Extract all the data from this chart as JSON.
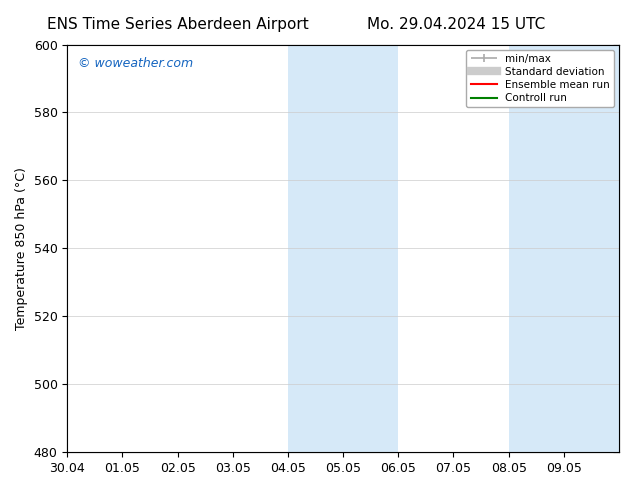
{
  "title_left": "ENS Time Series Aberdeen Airport",
  "title_right": "Mo. 29.04.2024 15 UTC",
  "ylabel": "Temperature 850 hPa (°C)",
  "xlabel": "",
  "ylim": [
    480,
    600
  ],
  "yticks": [
    480,
    500,
    520,
    540,
    560,
    580,
    600
  ],
  "xlim_start": "2024-04-30",
  "xlim_end": "2024-05-10",
  "xtick_labels": [
    "30.04",
    "01.05",
    "02.05",
    "03.05",
    "04.05",
    "05.05",
    "06.05",
    "07.05",
    "08.05",
    "09.05"
  ],
  "shaded_regions": [
    {
      "xmin": "2024-05-04",
      "xmax": "2024-05-05",
      "color": "#d6e9f8"
    },
    {
      "xmin": "2024-05-05",
      "xmax": "2024-05-06",
      "color": "#d6e9f8"
    },
    {
      "xmin": "2024-05-08",
      "xmax": "2024-05-09",
      "color": "#d6e9f8"
    },
    {
      "xmin": "2024-05-09",
      "xmax": "2024-05-10",
      "color": "#d6e9f8"
    }
  ],
  "watermark": "© woweather.com",
  "watermark_color": "#1565C0",
  "legend_entries": [
    {
      "label": "min/max",
      "color": "#aaaaaa",
      "lw": 1.2,
      "ls": "-",
      "marker": "|"
    },
    {
      "label": "Standard deviation",
      "color": "#cccccc",
      "lw": 6,
      "ls": "-"
    },
    {
      "label": "Ensemble mean run",
      "color": "red",
      "lw": 1.5,
      "ls": "-"
    },
    {
      "label": "Controll run",
      "color": "green",
      "lw": 1.5,
      "ls": "-"
    }
  ],
  "bg_color": "#ffffff",
  "grid_color": "#cccccc",
  "tick_label_fontsize": 9,
  "title_fontsize": 11,
  "ylabel_fontsize": 9
}
